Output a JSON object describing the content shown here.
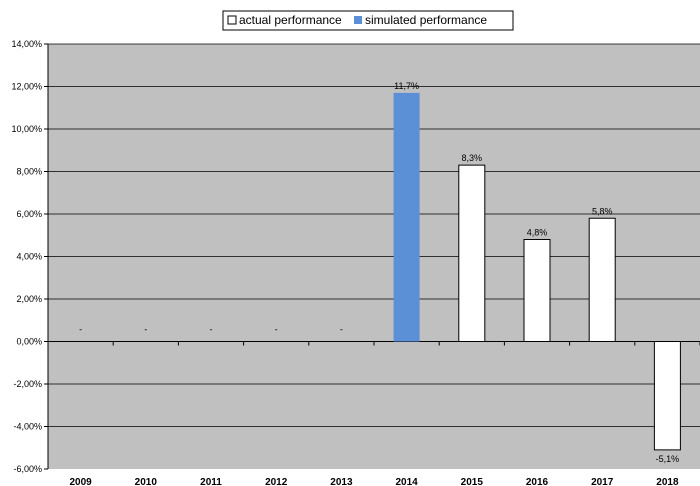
{
  "chart_data": {
    "type": "bar",
    "categories": [
      "2009",
      "2010",
      "2011",
      "2012",
      "2013",
      "2014",
      "2015",
      "2016",
      "2017",
      "2018"
    ],
    "series": [
      {
        "name": "actual performance",
        "color": "#ffffff",
        "values": [
          null,
          null,
          null,
          null,
          null,
          null,
          8.3,
          4.8,
          5.8,
          -5.1
        ]
      },
      {
        "name": "simulated performance",
        "color": "#5b8fd6",
        "values": [
          null,
          null,
          null,
          null,
          null,
          11.7,
          null,
          null,
          null,
          null
        ]
      }
    ],
    "data_labels": [
      "-",
      "-",
      "-",
      "-",
      "-",
      "11,7%",
      "8,3%",
      "4,8%",
      "5,8%",
      "-5,1%"
    ],
    "negative_label_color": "#ff0000",
    "yticks": [
      "14,00%",
      "12,00%",
      "10,00%",
      "8,00%",
      "6,00%",
      "4,00%",
      "2,00%",
      "0,00%",
      "-2,00%",
      "-4,00%",
      "-6,00%"
    ],
    "ylim": [
      -6,
      14
    ],
    "ytick_values": [
      14,
      12,
      10,
      8,
      6,
      4,
      2,
      0,
      -2,
      -4,
      -6
    ],
    "grid": true,
    "legend_position": "top-center",
    "plot_background": "#c0c0c0"
  }
}
